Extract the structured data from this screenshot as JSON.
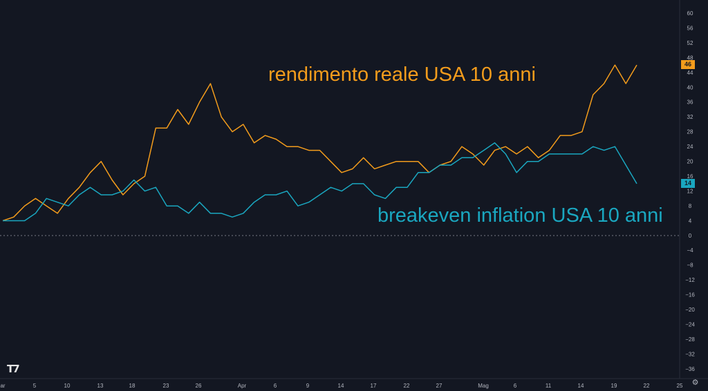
{
  "chart_data": {
    "type": "line",
    "x_tick_labels": [
      "ar",
      "5",
      "10",
      "13",
      "18",
      "23",
      "26",
      "Apr",
      "6",
      "9",
      "14",
      "17",
      "22",
      "27",
      "Mag",
      "6",
      "11",
      "14",
      "19",
      "22",
      "25"
    ],
    "y_tick_labels": [
      "60",
      "56",
      "52",
      "48",
      "44",
      "40",
      "36",
      "32",
      "28",
      "24",
      "20",
      "16",
      "12",
      "8",
      "4",
      "0",
      "−4",
      "−8",
      "−12",
      "−16",
      "−20",
      "−24",
      "−28",
      "−32",
      "−36"
    ],
    "ylim": [
      -38,
      62
    ],
    "zero_line": "dashed",
    "grid": false,
    "series": [
      {
        "name": "rendimento reale USA 10 anni",
        "color": "#f39c1c",
        "last_value": "46",
        "values": [
          4,
          5,
          8,
          10,
          8,
          6,
          10,
          13,
          17,
          20,
          15,
          11,
          14,
          16,
          29,
          29,
          34,
          30,
          36,
          41,
          32,
          28,
          30,
          25,
          27,
          26,
          24,
          24,
          23,
          23,
          20,
          17,
          18,
          21,
          18,
          19,
          20,
          20,
          20,
          17,
          19,
          20,
          24,
          22,
          19,
          23,
          24,
          22,
          24,
          21,
          23,
          27,
          27,
          28,
          38,
          41,
          46,
          41,
          46
        ]
      },
      {
        "name": "breakeven inflation USA 10 anni",
        "color": "#1aa7c0",
        "last_value": "14",
        "values": [
          4,
          4,
          4,
          6,
          10,
          9,
          8,
          11,
          13,
          11,
          11,
          12,
          15,
          12,
          13,
          8,
          8,
          6,
          9,
          6,
          6,
          5,
          6,
          9,
          11,
          11,
          12,
          8,
          9,
          11,
          13,
          12,
          14,
          14,
          11,
          10,
          13,
          13,
          17,
          17,
          19,
          19,
          21,
          21,
          23,
          25,
          22,
          17,
          20,
          20,
          22,
          22,
          22,
          22,
          24,
          23,
          24,
          19,
          14
        ]
      }
    ]
  },
  "labels": {
    "series_real": "rendimento reale USA 10 anni",
    "series_breakeven": "breakeven inflation USA 10 anni",
    "badge_real": "46",
    "badge_breakeven": "14"
  },
  "branding": {
    "logo": "T7"
  },
  "icons": {
    "settings": "gear-icon"
  }
}
